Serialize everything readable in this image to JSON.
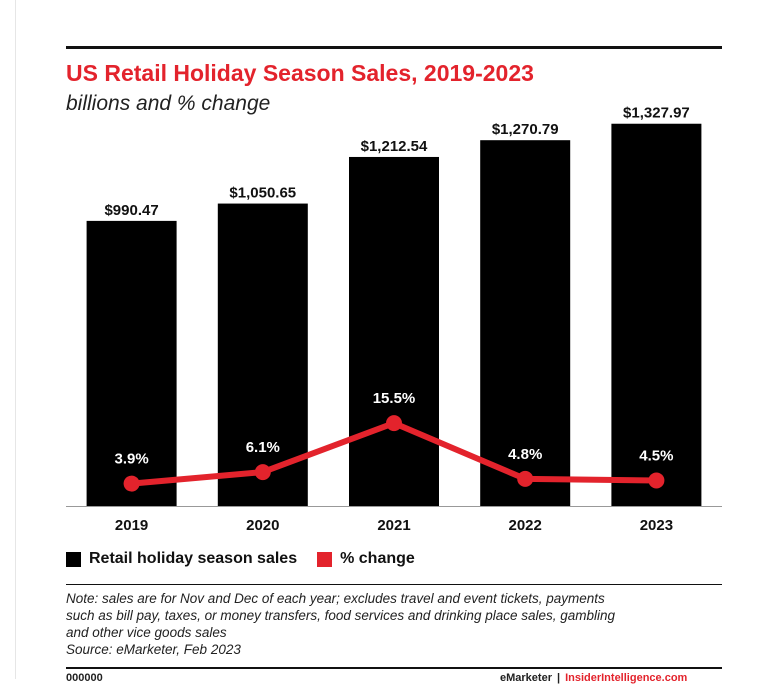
{
  "header": {
    "title": "US Retail Holiday Season Sales, 2019-2023",
    "subtitle": "billions and % change"
  },
  "colors": {
    "bars": "#000000",
    "line": "#e3232c",
    "title": "#e3232c"
  },
  "chart_data": {
    "type": "bar",
    "title": "US Retail Holiday Season Sales, 2019-2023",
    "subtitle": "billions and % change",
    "categories": [
      "2019",
      "2020",
      "2021",
      "2022",
      "2023"
    ],
    "series": [
      {
        "name": "Retail holiday season sales",
        "type": "bar",
        "values": [
          990.47,
          1050.65,
          1212.54,
          1270.79,
          1327.97
        ],
        "labels": [
          "$990.47",
          "$1,050.65",
          "$1,212.54",
          "$1,270.79",
          "$1,327.97"
        ]
      },
      {
        "name": "% change",
        "type": "line",
        "values": [
          3.9,
          6.1,
          15.5,
          4.8,
          4.5
        ],
        "labels": [
          "3.9%",
          "6.1%",
          "15.5%",
          "4.8%",
          "4.5%"
        ]
      }
    ],
    "bar_ylim": [
      0,
      1400
    ],
    "line_ylim": [
      -2.7,
      27.6
    ],
    "grid": false,
    "legend_position": "bottom-left"
  },
  "legend": {
    "items": [
      {
        "label": "Retail holiday season sales"
      },
      {
        "label": "% change"
      }
    ]
  },
  "note": {
    "lines": [
      "Note: sales are for Nov and Dec of each year; excludes travel and event tickets, payments",
      "such as bill pay, taxes, or money transfers, food services and drinking place sales, gambling",
      "and other vice goods sales",
      "Source: eMarketer, Feb 2023"
    ]
  },
  "footer": {
    "id": "000000",
    "brand": "eMarketer",
    "separator": "|",
    "site": "InsiderIntelligence.com"
  }
}
